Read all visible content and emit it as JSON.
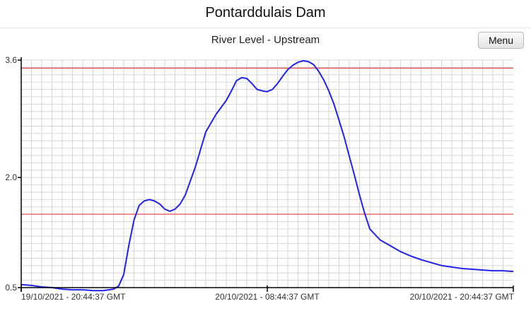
{
  "page": {
    "title": "Pontarddulais Dam"
  },
  "menu": {
    "label": "Menu"
  },
  "colors": {
    "series": "#2222ee",
    "threshold": "#e65050",
    "grid": "#d6d6d6",
    "axis": "#000000"
  },
  "chart_data": {
    "type": "line",
    "title": "River Level - Upstream",
    "xlabel": "",
    "ylabel": "",
    "grid": true,
    "ylim": [
      0.5,
      3.6
    ],
    "xlim": [
      0,
      48
    ],
    "y_ticks": [
      {
        "value": 0.5,
        "label": "0.5"
      },
      {
        "value": 2.0,
        "label": "2.0"
      },
      {
        "value": 3.6,
        "label": "3.6"
      }
    ],
    "x_ticks": [
      {
        "value": 0,
        "label": "19/10/2021 - 20:44:37 GMT"
      },
      {
        "value": 24,
        "label": "20/10/2021 - 08:44:37 GMT"
      },
      {
        "value": 48,
        "label": "20/10/2021 - 20:44:37 GMT"
      }
    ],
    "thresholds": [
      1.5,
      3.49
    ],
    "series": [
      {
        "x": [
          0,
          1,
          2,
          3,
          4,
          5,
          6,
          7,
          8,
          9,
          9.5,
          10,
          10.5,
          11,
          11.5,
          12,
          12.5,
          13,
          13.5,
          14,
          14.5,
          15,
          15.5,
          16,
          17,
          18,
          19,
          20,
          20.5,
          21,
          21.5,
          22,
          22.5,
          23,
          23.5,
          24,
          24.5,
          25,
          25.5,
          26,
          26.5,
          27,
          27.5,
          28,
          28.5,
          29,
          29.5,
          30,
          30.5,
          31,
          31.5,
          32,
          32.5,
          33,
          33.5,
          34,
          35,
          36,
          37,
          38,
          39,
          40,
          41,
          42,
          43,
          44,
          45,
          46,
          47,
          48
        ],
        "values": [
          0.54,
          0.53,
          0.51,
          0.5,
          0.48,
          0.47,
          0.47,
          0.46,
          0.46,
          0.48,
          0.52,
          0.68,
          1.08,
          1.42,
          1.62,
          1.68,
          1.7,
          1.68,
          1.64,
          1.57,
          1.54,
          1.57,
          1.64,
          1.76,
          2.15,
          2.62,
          2.86,
          3.05,
          3.18,
          3.32,
          3.36,
          3.35,
          3.28,
          3.2,
          3.18,
          3.17,
          3.2,
          3.28,
          3.38,
          3.47,
          3.53,
          3.57,
          3.59,
          3.58,
          3.54,
          3.45,
          3.33,
          3.18,
          3.0,
          2.78,
          2.55,
          2.29,
          2.03,
          1.76,
          1.51,
          1.3,
          1.15,
          1.07,
          0.99,
          0.93,
          0.88,
          0.84,
          0.8,
          0.78,
          0.76,
          0.75,
          0.74,
          0.73,
          0.73,
          0.72
        ]
      }
    ]
  }
}
